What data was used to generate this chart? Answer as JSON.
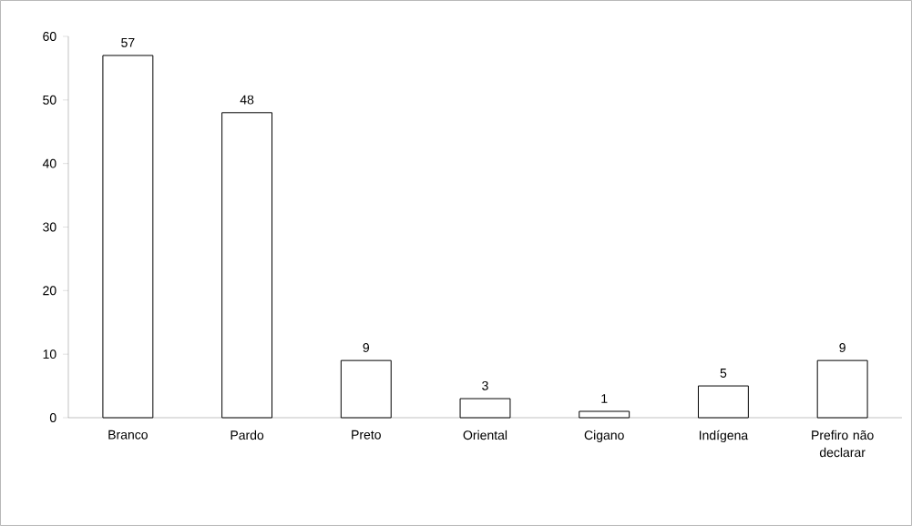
{
  "chart_data": {
    "type": "bar",
    "categories": [
      "Branco",
      "Pardo",
      "Preto",
      "Oriental",
      "Cigano",
      "Indígena",
      "Prefiro não declarar"
    ],
    "values": [
      57,
      48,
      9,
      3,
      1,
      5,
      9
    ],
    "color": "#ffffff",
    "ylim": [
      0,
      60
    ],
    "yticks": [
      0,
      10,
      20,
      30,
      40,
      50,
      60
    ],
    "data_labels": true,
    "grid": false
  }
}
